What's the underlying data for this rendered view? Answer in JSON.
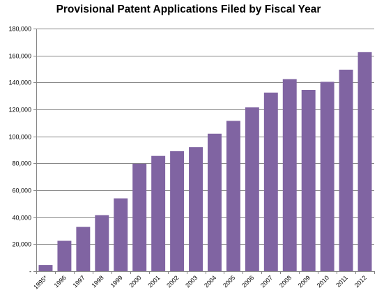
{
  "chart_data": {
    "type": "bar",
    "title": "Provisional Patent Applications Filed by Fiscal Year",
    "xlabel": "",
    "ylabel": "",
    "categories": [
      "1995*",
      "1996",
      "1997",
      "1998",
      "1999",
      "2000",
      "2001",
      "2002",
      "2003",
      "2004",
      "2005",
      "2006",
      "2007",
      "2008",
      "2009",
      "2010",
      "2011",
      "2012"
    ],
    "values": [
      4600,
      22500,
      32800,
      41500,
      54000,
      79700,
      85500,
      89000,
      92000,
      102000,
      111500,
      121500,
      132500,
      142500,
      134500,
      140500,
      149500,
      162500
    ],
    "ylim": [
      0,
      180000
    ],
    "y_ticks": [
      0,
      20000,
      40000,
      60000,
      80000,
      100000,
      120000,
      140000,
      160000,
      180000
    ],
    "y_tick_labels": [
      "-",
      "20,000",
      "40,000",
      "60,000",
      "80,000",
      "100,000",
      "120,000",
      "140,000",
      "160,000",
      "180,000"
    ],
    "grid": true,
    "legend": "none",
    "colors": {
      "bar": "#8064A2",
      "grid": "#868686",
      "axis": "#868686"
    }
  }
}
